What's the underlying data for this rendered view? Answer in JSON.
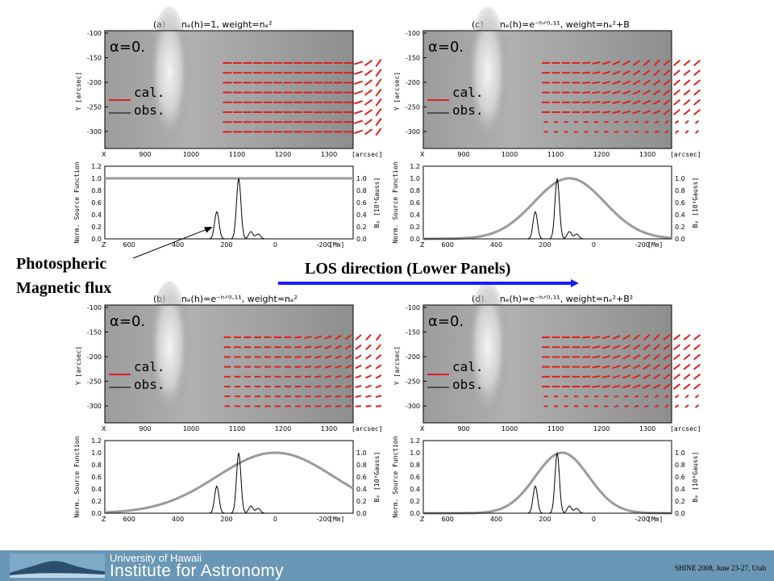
{
  "annotations": {
    "photospheric_line1": "Photospheric",
    "photospheric_line2": "Magnetic flux",
    "los_direction": "LOS direction (Lower Panels)"
  },
  "footer": {
    "university": "University of Hawaii",
    "institute": "Institute for Astronomy",
    "conference": "SHINE 2008, June 23-27, Utah",
    "background_color": "#6a97b5"
  },
  "colors": {
    "calculated": "#e0201c",
    "observed": "#000000",
    "source_function": "#9a9a9a",
    "magnetic_flux": "#000000",
    "arrow": "#1a1aff"
  },
  "panels": [
    {
      "id": "a",
      "label": "(a)",
      "formula": "nₑ(h)=1,  weight=nₑ²"
    },
    {
      "id": "c",
      "label": "(c)",
      "formula": "nₑ(h)=e⁻ʰᐟ⁰⋅¹¹,  weight=nₑ²+B"
    },
    {
      "id": "b",
      "label": "(b)",
      "formula": "nₑ(h)=e⁻ʰᐟ⁰⋅¹¹,  weight=nₑ²"
    },
    {
      "id": "d",
      "label": "(d)",
      "formula": "nₑ(h)=e⁻ʰᐟ⁰⋅¹¹,  weight=nₑ²+B²"
    }
  ],
  "image_panel": {
    "alpha_label": "α=0.",
    "legend": [
      "cal.",
      "obs."
    ],
    "ylabel": "Y [arcsec]",
    "xlabel_prefix": "X",
    "xlabel_unit": "[arcsec]",
    "yticks": [
      "-100",
      "-150",
      "-200",
      "-250",
      "-300"
    ],
    "xticks": [
      "900",
      "1000",
      "1100",
      "1200",
      "1300"
    ]
  },
  "profile_panel": {
    "ylabel_left": "Norm. Source Function",
    "ylabel_right": "Bₚ [10⁶Gauss]",
    "xlabel_prefix": "Z",
    "xlabel_unit": "[Mm]",
    "yticks_left": [
      "1.2",
      "1.0",
      "0.8",
      "0.6",
      "0.4",
      "0.2",
      "0.0"
    ],
    "yticks_right": [
      "1.0",
      "0.8",
      "0.6",
      "0.4",
      "0.2",
      "0.0"
    ],
    "xticks": [
      "600",
      "400",
      "200",
      "0",
      "-200"
    ]
  },
  "chart_data": [
    {
      "type": "line",
      "panel": "a",
      "title": "nₑ(h)=1, weight=nₑ²",
      "xlabel": "Z [Mm]",
      "ylabel": "Norm. Source Function",
      "xlim": [
        700,
        -320
      ],
      "ylim": [
        0,
        1.2
      ],
      "series": [
        {
          "name": "source function",
          "type": "constant",
          "value": 1.0
        }
      ]
    },
    {
      "type": "line",
      "panel": "c",
      "title": "nₑ(h)=e^(-h/0.11), weight=nₑ²+B",
      "xlabel": "Z [Mm]",
      "ylabel": "Norm. Source Function",
      "xlim": [
        700,
        -320
      ],
      "ylim": [
        0,
        1.2
      ],
      "series": [
        {
          "name": "source function",
          "type": "gaussian",
          "center": 100,
          "sigma": 145,
          "peak": 1.0
        }
      ]
    },
    {
      "type": "line",
      "panel": "b",
      "title": "nₑ(h)=e^(-h/0.11), weight=nₑ²",
      "xlabel": "Z [Mm]",
      "ylabel": "Norm. Source Function",
      "xlim": [
        700,
        -320
      ],
      "ylim": [
        0,
        1.2
      ],
      "series": [
        {
          "name": "source function",
          "type": "gaussian",
          "center": 0,
          "sigma": 240,
          "peak": 1.0
        }
      ]
    },
    {
      "type": "line",
      "panel": "d",
      "title": "nₑ(h)=e^(-h/0.11), weight=nₑ²+B²",
      "xlabel": "Z [Mm]",
      "ylabel": "Norm. Source Function",
      "xlim": [
        700,
        -320
      ],
      "ylim": [
        0,
        1.2
      ],
      "series": [
        {
          "name": "source function",
          "type": "gaussian",
          "center": 130,
          "sigma": 110,
          "peak": 1.0
        }
      ]
    },
    {
      "type": "line",
      "panel": "all",
      "ylabel": "Bₚ [10⁶Gauss]",
      "ylim": [
        0,
        1.2
      ],
      "series": [
        {
          "name": "photospheric magnetic flux",
          "peaks": [
            [
              240,
              0.45
            ],
            [
              150,
              1.0
            ],
            [
              100,
              0.12
            ],
            [
              70,
              0.08
            ]
          ]
        }
      ]
    }
  ]
}
